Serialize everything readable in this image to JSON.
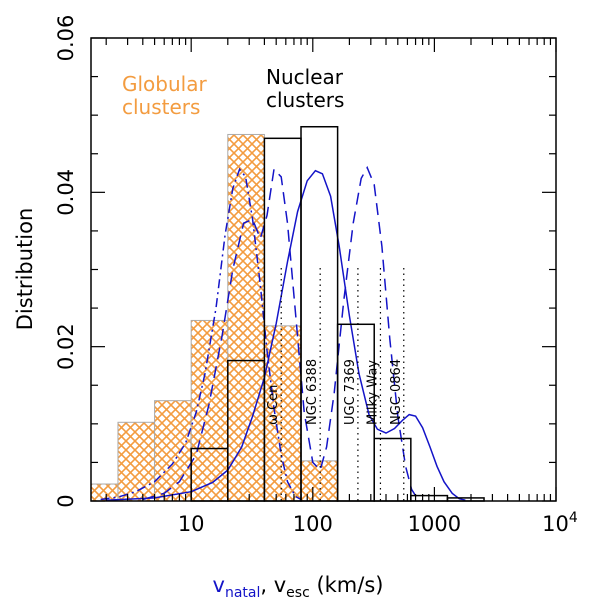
{
  "chart_data": {
    "type": "bar",
    "x_scale": "log",
    "xlim": [
      1.5,
      10000
    ],
    "ylim": [
      0,
      0.06
    ],
    "ylabel": "Distribution",
    "xlabel": {
      "natal": "v",
      "natal_sub": "natal",
      "sep": ", ",
      "esc": "v",
      "esc_sub": "esc",
      "units": " (km/s)"
    },
    "x_tick_labels": [
      {
        "value": 10,
        "label": "10"
      },
      {
        "value": 100,
        "label": "100"
      },
      {
        "value": 1000,
        "label": "1000"
      },
      {
        "value": 10000,
        "label": "10",
        "sup": "4"
      }
    ],
    "y_tick_labels": [
      {
        "value": 0,
        "label": "0"
      },
      {
        "value": 0.02,
        "label": "0.02"
      },
      {
        "value": 0.04,
        "label": "0.04"
      },
      {
        "value": 0.06,
        "label": "0.06"
      }
    ],
    "annotations": {
      "globular": [
        "Globular",
        "clusters"
      ],
      "nuclear": [
        "Nuclear",
        "clusters"
      ]
    },
    "colors": {
      "globular": "#f39c40",
      "nuclear": "#000000",
      "curves": "#1414c8"
    },
    "series": [
      {
        "name": "Globular clusters",
        "style": "hatched",
        "bins": [
          {
            "x0": 1.5,
            "x1": 2.5,
            "y": 0.0022
          },
          {
            "x0": 2.5,
            "x1": 5,
            "y": 0.0102
          },
          {
            "x0": 5,
            "x1": 10,
            "y": 0.013
          },
          {
            "x0": 10,
            "x1": 20,
            "y": 0.0234
          },
          {
            "x0": 20,
            "x1": 40,
            "y": 0.0475
          },
          {
            "x0": 40,
            "x1": 80,
            "y": 0.0227
          },
          {
            "x0": 80,
            "x1": 160,
            "y": 0.0052
          }
        ]
      },
      {
        "name": "Nuclear clusters",
        "style": "outline",
        "bins": [
          {
            "x0": 10,
            "x1": 20,
            "y": 0.0068
          },
          {
            "x0": 20,
            "x1": 40,
            "y": 0.0182
          },
          {
            "x0": 40,
            "x1": 80,
            "y": 0.047
          },
          {
            "x0": 80,
            "x1": 160,
            "y": 0.0485
          },
          {
            "x0": 160,
            "x1": 320,
            "y": 0.0229
          },
          {
            "x0": 320,
            "x1": 640,
            "y": 0.0081
          },
          {
            "x0": 640,
            "x1": 1280,
            "y": 0.0007
          },
          {
            "x0": 1280,
            "x1": 2560,
            "y": 0.0004
          }
        ]
      },
      {
        "name": "",
        "style": "dashdot",
        "points": [
          [
            1.8,
            0.0002
          ],
          [
            2.5,
            0.0005
          ],
          [
            3.5,
            0.0012
          ],
          [
            5,
            0.0025
          ],
          [
            7,
            0.0048
          ],
          [
            9,
            0.0075
          ],
          [
            11,
            0.0115
          ],
          [
            13,
            0.0165
          ],
          [
            16,
            0.025
          ],
          [
            19,
            0.0345
          ],
          [
            22,
            0.0405
          ],
          [
            25,
            0.043
          ],
          [
            28,
            0.042
          ],
          [
            32,
            0.0365
          ],
          [
            37,
            0.028
          ],
          [
            42,
            0.0195
          ],
          [
            48,
            0.012
          ],
          [
            55,
            0.006
          ],
          [
            62,
            0.0025
          ],
          [
            72,
            0.0006
          ],
          [
            80,
            0.0002
          ]
        ]
      },
      {
        "name": "",
        "style": "longdash",
        "points": [
          [
            4,
            0.0002
          ],
          [
            6,
            0.001
          ],
          [
            8,
            0.0025
          ],
          [
            11,
            0.006
          ],
          [
            14,
            0.0125
          ],
          [
            18,
            0.0215
          ],
          [
            22,
            0.03
          ],
          [
            27,
            0.036
          ],
          [
            32,
            0.0365
          ],
          [
            37,
            0.034
          ],
          [
            42,
            0.037
          ],
          [
            48,
            0.043
          ],
          [
            55,
            0.042
          ],
          [
            62,
            0.036
          ],
          [
            72,
            0.0245
          ],
          [
            85,
            0.0115
          ],
          [
            100,
            0.005
          ],
          [
            115,
            0.004
          ],
          [
            130,
            0.007
          ],
          [
            150,
            0.014
          ],
          [
            180,
            0.026
          ],
          [
            215,
            0.036
          ],
          [
            250,
            0.0418
          ],
          [
            280,
            0.0432
          ],
          [
            320,
            0.041
          ],
          [
            370,
            0.033
          ],
          [
            430,
            0.021
          ],
          [
            500,
            0.011
          ],
          [
            580,
            0.0045
          ],
          [
            650,
            0.0015
          ],
          [
            720,
            0.0004
          ],
          [
            800,
            0.0001
          ]
        ]
      },
      {
        "name": "",
        "style": "solid",
        "points": [
          [
            2,
            0.0001
          ],
          [
            5,
            0.0004
          ],
          [
            10,
            0.0012
          ],
          [
            15,
            0.0024
          ],
          [
            20,
            0.004
          ],
          [
            26,
            0.007
          ],
          [
            32,
            0.011
          ],
          [
            40,
            0.016
          ],
          [
            50,
            0.023
          ],
          [
            62,
            0.031
          ],
          [
            75,
            0.0375
          ],
          [
            90,
            0.0415
          ],
          [
            105,
            0.0428
          ],
          [
            120,
            0.0424
          ],
          [
            140,
            0.0395
          ],
          [
            165,
            0.033
          ],
          [
            200,
            0.024
          ],
          [
            240,
            0.0165
          ],
          [
            290,
            0.0112
          ],
          [
            340,
            0.0093
          ],
          [
            400,
            0.0088
          ],
          [
            470,
            0.0094
          ],
          [
            550,
            0.0105
          ],
          [
            620,
            0.0112
          ],
          [
            700,
            0.011
          ],
          [
            800,
            0.0095
          ],
          [
            920,
            0.007
          ],
          [
            1050,
            0.0045
          ],
          [
            1200,
            0.0025
          ],
          [
            1400,
            0.001
          ],
          [
            1600,
            0.0003
          ],
          [
            1800,
            0.0001
          ]
        ]
      }
    ],
    "vertical_markers": [
      {
        "x": 55,
        "label": "ω Cen"
      },
      {
        "x": 115,
        "label": "NGC 6388"
      },
      {
        "x": 235,
        "label": "UGC 7369"
      },
      {
        "x": 360,
        "label": "Milky Way"
      },
      {
        "x": 560,
        "label": "NGC 0864"
      }
    ]
  }
}
